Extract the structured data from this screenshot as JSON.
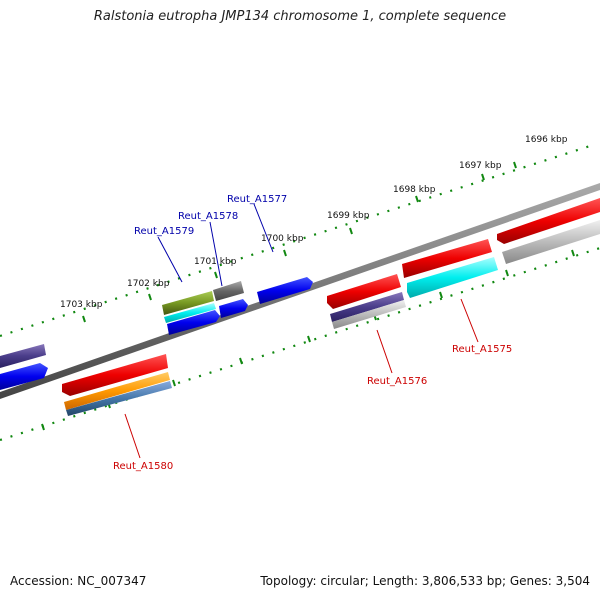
{
  "title": "Ralstonia eutropha JMP134 chromosome 1, complete sequence",
  "footer": {
    "accession": "Accession: NC_007347",
    "summary": "Topology: circular; Length: 3,806,533 bp; Genes: 3,504"
  },
  "ticks_top": [
    "1696 kbp",
    "1697 kbp",
    "1698 kbp",
    "1699 kbp",
    "1700 kbp",
    "1701 kbp",
    "1702 kbp",
    "1703 kbp"
  ],
  "genes_top": [
    "Reut_A1577",
    "Reut_A1578",
    "Reut_A1579"
  ],
  "genes_bottom": [
    "Reut_A1575",
    "Reut_A1576",
    "Reut_A1580"
  ],
  "colors": {
    "forward_strand": "#dd0000",
    "blue_gene": "#0000dd",
    "label_blue": "#0000aa",
    "label_red": "#cc0000",
    "tick": "#118811",
    "backbone": "#7a7a7a"
  }
}
